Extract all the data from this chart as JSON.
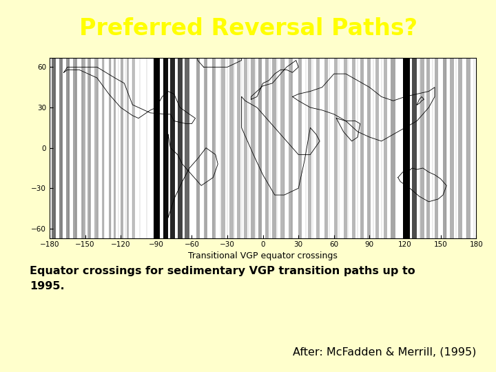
{
  "title": "Preferred Reversal Paths?",
  "title_bg_color": "#1e3a6e",
  "title_text_color": "#ffff00",
  "slide_bg_color": "#ffffcc",
  "caption_line1": "Equator crossings for sedimentary VGP transition paths up to",
  "caption_line2": "1995.",
  "attribution": "After: McFadden & Merrill, (1995)",
  "caption_fontsize": 11.5,
  "attribution_fontsize": 11.5,
  "title_fontsize": 24,
  "map_xlabel": "Transitional VGP equator crossings",
  "map_xticks": [
    -180,
    -150,
    -120,
    -90,
    -60,
    -30,
    0,
    30,
    60,
    90,
    120,
    150,
    180
  ],
  "map_yticks": [
    -60,
    -30,
    0,
    30,
    60
  ],
  "map_xlim": [
    -180,
    180
  ],
  "map_ylim": [
    -67,
    67
  ]
}
